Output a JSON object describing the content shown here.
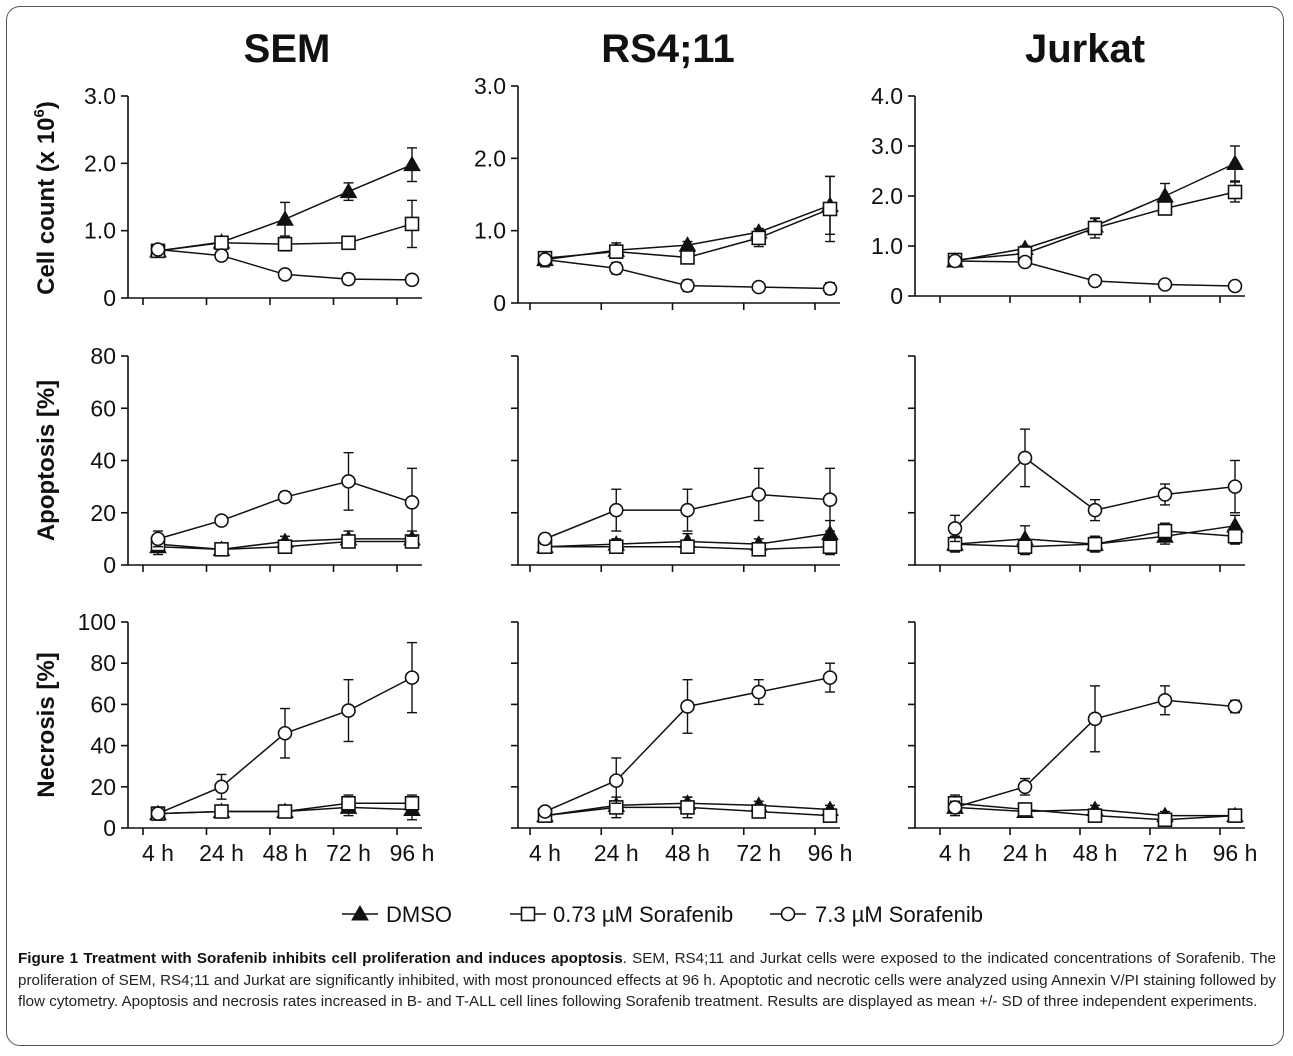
{
  "figure": {
    "caption_label": "Figure 1",
    "caption_title": "Treatment with Sorafenib inhibits cell proliferation and induces apoptosis",
    "caption_text": ". SEM, RS4;11 and Jurkat cells were exposed to the indicated concentrations of Sorafenib. The proliferation of SEM, RS4;11 and Jurkat are significantly inhibited, with most pronounced effects at 96 h. Apoptotic and necrotic cells were analyzed using Annexin V/PI staining followed by flow cytometry. Apoptosis and necrosis rates increased in B- and T-ALL cell lines following Sorafenib treatment. Results are displayed as mean +/- SD of three independent experiments."
  },
  "legend": [
    "DMSO",
    "0.73 µM Sorafenib",
    "7.3 µM Sorafenib"
  ],
  "columns": [
    "SEM",
    "RS4;11",
    "Jurkat"
  ],
  "row_labels": [
    "Cell count (x 10",
    "Apoptosis [%]",
    "Necrosis [%]"
  ],
  "row_label_superscript": "6",
  "row_label_suffix": ")",
  "chart_data": [
    {
      "type": "line",
      "title": "SEM",
      "ylabel": "Cell count (x 10^6)",
      "categories": [
        "4 h",
        "24 h",
        "48 h",
        "72 h",
        "96 h"
      ],
      "ylim": [
        0,
        3.0
      ],
      "yticks": [
        "0",
        "1.0",
        "2.0",
        "3.0"
      ],
      "series": [
        {
          "name": "DMSO",
          "values": [
            0.7,
            0.83,
            1.17,
            1.58,
            1.98
          ],
          "err": [
            0.05,
            0.05,
            0.25,
            0.13,
            0.25
          ]
        },
        {
          "name": "0.73 µM Sorafenib",
          "values": [
            0.7,
            0.82,
            0.8,
            0.82,
            1.1
          ],
          "err": [
            0.05,
            0.05,
            0.1,
            0.07,
            0.35
          ]
        },
        {
          "name": "7.3 µM Sorafenib",
          "values": [
            0.72,
            0.63,
            0.35,
            0.28,
            0.27
          ],
          "err": [
            0.05,
            0.05,
            0.05,
            0.08,
            0.06
          ]
        }
      ]
    },
    {
      "type": "line",
      "title": "RS4;11",
      "ylabel": "",
      "categories": [
        "4 h",
        "24 h",
        "48 h",
        "72 h",
        "96 h"
      ],
      "ylim": [
        0,
        3.0
      ],
      "yticks": [
        "0",
        "1.0",
        "2.0",
        "3.0"
      ],
      "series": [
        {
          "name": "DMSO",
          "values": [
            0.6,
            0.73,
            0.8,
            0.98,
            1.35
          ],
          "err": [
            0.1,
            0.1,
            0.05,
            0.05,
            0.4
          ]
        },
        {
          "name": "0.73 µM Sorafenib",
          "values": [
            0.62,
            0.71,
            0.63,
            0.9,
            1.3
          ],
          "err": [
            0.08,
            0.08,
            0.05,
            0.12,
            0.45
          ]
        },
        {
          "name": "7.3 µM Sorafenib",
          "values": [
            0.6,
            0.48,
            0.24,
            0.22,
            0.2
          ],
          "err": [
            0.07,
            0.08,
            0.08,
            0.02,
            0.08
          ]
        }
      ]
    },
    {
      "type": "line",
      "title": "Jurkat",
      "ylabel": "",
      "categories": [
        "4 h",
        "24 h",
        "48 h",
        "72 h",
        "96 h"
      ],
      "ylim": [
        0,
        4.0
      ],
      "yticks": [
        "0",
        "1.0",
        "2.0",
        "3.0",
        "4.0"
      ],
      "series": [
        {
          "name": "DMSO",
          "values": [
            0.7,
            0.95,
            1.4,
            2.0,
            2.65
          ],
          "err": [
            0.05,
            0.05,
            0.15,
            0.25,
            0.35
          ]
        },
        {
          "name": "0.73 µM Sorafenib",
          "values": [
            0.72,
            0.85,
            1.36,
            1.75,
            2.08
          ],
          "err": [
            0.05,
            0.05,
            0.2,
            0.1,
            0.2
          ]
        },
        {
          "name": "7.3 µM Sorafenib",
          "values": [
            0.7,
            0.68,
            0.3,
            0.23,
            0.2
          ],
          "err": [
            0.05,
            0.05,
            0.03,
            0.03,
            0.03
          ]
        }
      ]
    },
    {
      "type": "line",
      "title": "",
      "ylabel": "Apoptosis [%]",
      "categories": [
        "4 h",
        "24 h",
        "48 h",
        "72 h",
        "96 h"
      ],
      "ylim": [
        0,
        80
      ],
      "yticks": [
        "0",
        "20",
        "40",
        "60",
        "80"
      ],
      "series": [
        {
          "name": "DMSO",
          "values": [
            7,
            6,
            9,
            10,
            10
          ],
          "err": [
            3,
            1,
            2,
            3,
            3
          ]
        },
        {
          "name": "0.73 µM Sorafenib",
          "values": [
            8,
            6,
            7,
            9,
            9
          ],
          "err": [
            2,
            1,
            2,
            2,
            2
          ]
        },
        {
          "name": "7.3 µM Sorafenib",
          "values": [
            10,
            17,
            26,
            32,
            24
          ],
          "err": [
            3,
            1,
            2,
            11,
            13
          ]
        }
      ]
    },
    {
      "type": "line",
      "title": "",
      "ylabel": "",
      "categories": [
        "4 h",
        "24 h",
        "48 h",
        "72 h",
        "96 h"
      ],
      "ylim": [
        0,
        80
      ],
      "yticks": [],
      "series": [
        {
          "name": "DMSO",
          "values": [
            7,
            8,
            9,
            8,
            12
          ],
          "err": [
            2,
            2,
            3,
            2,
            5
          ]
        },
        {
          "name": "0.73 µM Sorafenib",
          "values": [
            7,
            7,
            7,
            6,
            7
          ],
          "err": [
            2,
            2,
            2,
            2,
            3
          ]
        },
        {
          "name": "7.3 µM Sorafenib",
          "values": [
            10,
            21,
            21,
            27,
            25
          ],
          "err": [
            2,
            8,
            8,
            10,
            12
          ]
        }
      ]
    },
    {
      "type": "line",
      "title": "",
      "ylabel": "",
      "categories": [
        "4 h",
        "24 h",
        "48 h",
        "72 h",
        "96 h"
      ],
      "ylim": [
        0,
        80
      ],
      "yticks": [],
      "series": [
        {
          "name": "DMSO",
          "values": [
            8,
            10,
            8,
            11,
            15
          ],
          "err": [
            3,
            5,
            3,
            3,
            4
          ]
        },
        {
          "name": "0.73 µM Sorafenib",
          "values": [
            8,
            7,
            8,
            13,
            11
          ],
          "err": [
            3,
            3,
            3,
            3,
            3
          ]
        },
        {
          "name": "7.3 µM Sorafenib",
          "values": [
            14,
            41,
            21,
            27,
            30
          ],
          "err": [
            5,
            11,
            4,
            4,
            10
          ]
        }
      ]
    },
    {
      "type": "line",
      "title": "",
      "ylabel": "Necrosis [%]",
      "categories": [
        "4 h",
        "24 h",
        "48 h",
        "72 h",
        "96 h"
      ],
      "ylim": [
        0,
        100
      ],
      "yticks": [
        "0",
        "20",
        "40",
        "60",
        "80",
        "100"
      ],
      "series": [
        {
          "name": "DMSO",
          "values": [
            7,
            8,
            8,
            10,
            9
          ],
          "err": [
            2,
            3,
            3,
            4,
            5
          ]
        },
        {
          "name": "0.73 µM Sorafenib",
          "values": [
            7,
            8,
            8,
            12,
            12
          ],
          "err": [
            2,
            3,
            3,
            4,
            4
          ]
        },
        {
          "name": "7.3 µM Sorafenib",
          "values": [
            7,
            20,
            46,
            57,
            73
          ],
          "err": [
            2,
            6,
            12,
            15,
            17
          ]
        }
      ]
    },
    {
      "type": "line",
      "title": "",
      "ylabel": "",
      "categories": [
        "4 h",
        "24 h",
        "48 h",
        "72 h",
        "96 h"
      ],
      "ylim": [
        0,
        100
      ],
      "yticks": [],
      "series": [
        {
          "name": "DMSO",
          "values": [
            6,
            11,
            12,
            11,
            9
          ],
          "err": [
            2,
            2,
            3,
            2,
            2
          ]
        },
        {
          "name": "0.73 µM Sorafenib",
          "values": [
            6,
            10,
            10,
            8,
            6
          ],
          "err": [
            2,
            5,
            5,
            3,
            2
          ]
        },
        {
          "name": "7.3 µM Sorafenib",
          "values": [
            8,
            23,
            59,
            66,
            73
          ],
          "err": [
            2,
            11,
            13,
            6,
            7
          ]
        }
      ]
    },
    {
      "type": "line",
      "title": "",
      "ylabel": "",
      "categories": [
        "4 h",
        "24 h",
        "48 h",
        "72 h",
        "96 h"
      ],
      "ylim": [
        0,
        100
      ],
      "yticks": [],
      "series": [
        {
          "name": "DMSO",
          "values": [
            10,
            8,
            9,
            6,
            6
          ],
          "err": [
            4,
            2,
            2,
            2,
            2
          ]
        },
        {
          "name": "0.73 µM Sorafenib",
          "values": [
            12,
            9,
            6,
            4,
            6
          ],
          "err": [
            4,
            2,
            2,
            2,
            2
          ]
        },
        {
          "name": "7.3 µM Sorafenib",
          "values": [
            10,
            20,
            53,
            62,
            59
          ],
          "err": [
            3,
            4,
            16,
            7,
            3
          ]
        }
      ]
    }
  ]
}
